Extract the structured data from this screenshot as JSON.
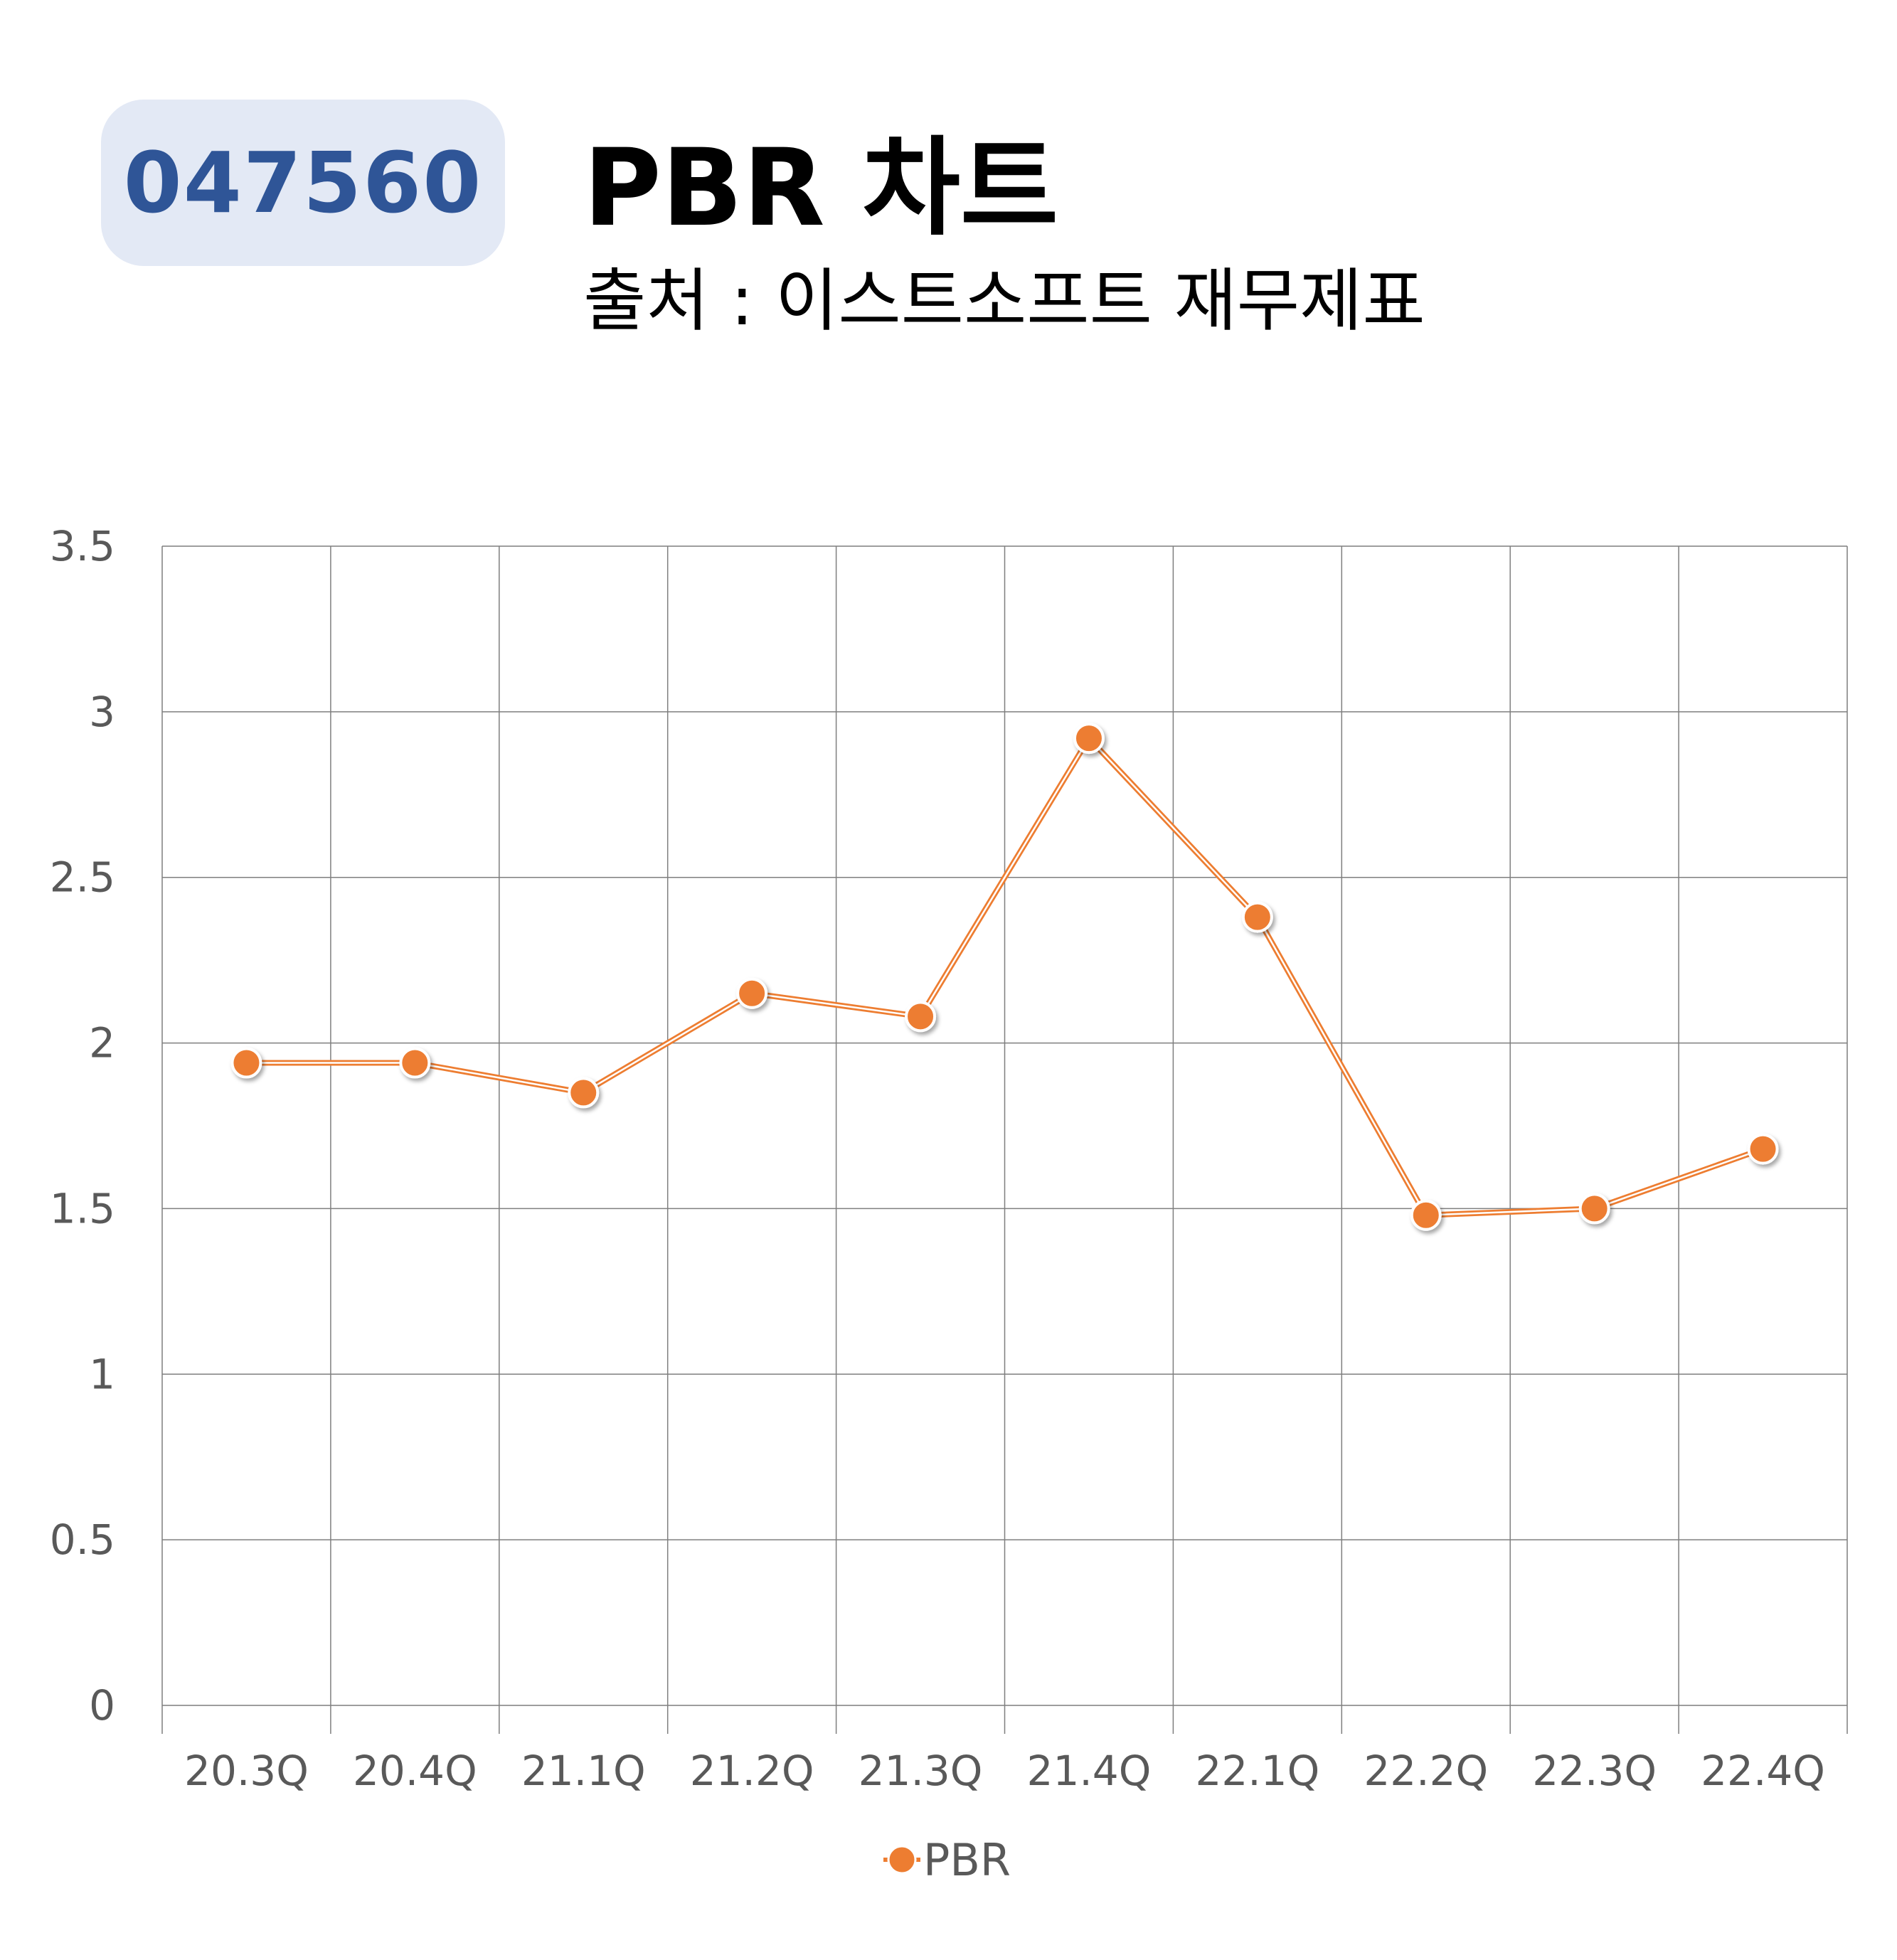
{
  "header": {
    "ticker": "047560",
    "title": "PBR 차트",
    "subtitle": "출처 : 이스트소프트 재무제표"
  },
  "colors": {
    "badge_bg": "#e3e9f5",
    "ticker_text": "#2f5597",
    "series": "#ed7d31",
    "grid": "#7f7f7f",
    "tick_text": "#595959"
  },
  "chart_data": {
    "type": "line",
    "categories": [
      "20.3Q",
      "20.4Q",
      "21.1Q",
      "21.2Q",
      "21.3Q",
      "21.4Q",
      "22.1Q",
      "22.2Q",
      "22.3Q",
      "22.4Q"
    ],
    "series": [
      {
        "name": "PBR",
        "values": [
          1.94,
          1.94,
          1.85,
          2.15,
          2.08,
          2.92,
          2.38,
          1.48,
          1.5,
          1.68
        ]
      }
    ],
    "yticks": [
      "0",
      "0.5",
      "1",
      "1.5",
      "2",
      "2.5",
      "3",
      "3.5"
    ],
    "ylim": [
      0,
      3.5
    ],
    "grid": true,
    "legend": "bottom",
    "markers": true
  }
}
